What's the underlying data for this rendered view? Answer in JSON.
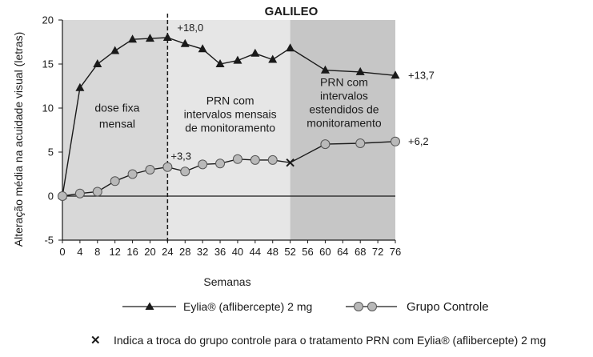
{
  "chart_data": {
    "type": "line",
    "title": "GALILEO",
    "xlabel": "Semanas",
    "ylabel": "Alteração média na acuidade visual (letras)",
    "xlim": [
      0,
      76
    ],
    "ylim": [
      -5,
      20
    ],
    "xticks": [
      "0",
      "4",
      "8",
      "12",
      "16",
      "20",
      "24",
      "28",
      "32",
      "36",
      "40",
      "44",
      "48",
      "52",
      "56",
      "60",
      "64",
      "68",
      "72",
      "76"
    ],
    "yticks": [
      "-5",
      "0",
      "5",
      "10",
      "15",
      "20"
    ],
    "phases": [
      {
        "from": 0,
        "to": 24,
        "label_lines": [
          "dose fixa",
          "mensal"
        ]
      },
      {
        "from": 24,
        "to": 52,
        "label_lines": [
          "PRN com",
          "intervalos mensais",
          "de monitoramento"
        ]
      },
      {
        "from": 52,
        "to": 76,
        "label_lines": [
          "PRN com",
          "intervalos",
          "estendidos de",
          "monitoramento"
        ]
      }
    ],
    "divider_week": 24,
    "series": [
      {
        "name": "Eylia® (aflibercepte) 2 mg",
        "marker": "triangle",
        "x": [
          0,
          4,
          8,
          12,
          16,
          20,
          24,
          28,
          32,
          36,
          40,
          44,
          48,
          52,
          60,
          68,
          76
        ],
        "values": [
          0,
          12.3,
          15.0,
          16.5,
          17.8,
          17.9,
          18.0,
          17.3,
          16.7,
          15.0,
          15.4,
          16.2,
          15.5,
          16.8,
          14.3,
          14.1,
          13.7
        ]
      },
      {
        "name": "Grupo Controle",
        "marker": "circle",
        "x": [
          0,
          4,
          8,
          12,
          16,
          20,
          24,
          28,
          32,
          36,
          40,
          44,
          48,
          52,
          60,
          68,
          76
        ],
        "values": [
          0,
          0.3,
          0.5,
          1.7,
          2.5,
          3.0,
          3.3,
          2.8,
          3.6,
          3.7,
          4.2,
          4.1,
          4.1,
          3.8,
          5.9,
          6.0,
          6.2
        ]
      }
    ],
    "switch_point": {
      "x": 52,
      "y": 3.8
    },
    "annotations": [
      {
        "text": "+18,0",
        "x": 24,
        "y": 18.0
      },
      {
        "text": "+13,7",
        "x": 76,
        "y": 13.7
      },
      {
        "text": "+3,3",
        "x": 24,
        "y": 3.3
      },
      {
        "text": "+6,2",
        "x": 76,
        "y": 6.2
      }
    ],
    "colors": {
      "phase1": "#d8d8d8",
      "phase2": "#e6e6e6",
      "phase3": "#c6c6c6",
      "line": "#1a1a1a",
      "circle_fill": "#b9b9b9"
    }
  },
  "legend": {
    "eylia_label": "Eylia® (aflibercepte) 2 mg",
    "control_label": "Grupo Controle"
  },
  "footnote": {
    "symbol": "✕",
    "text": "Indica a troca do grupo controle para o tratamento PRN com Eylia® (aflibercepte) 2 mg"
  }
}
